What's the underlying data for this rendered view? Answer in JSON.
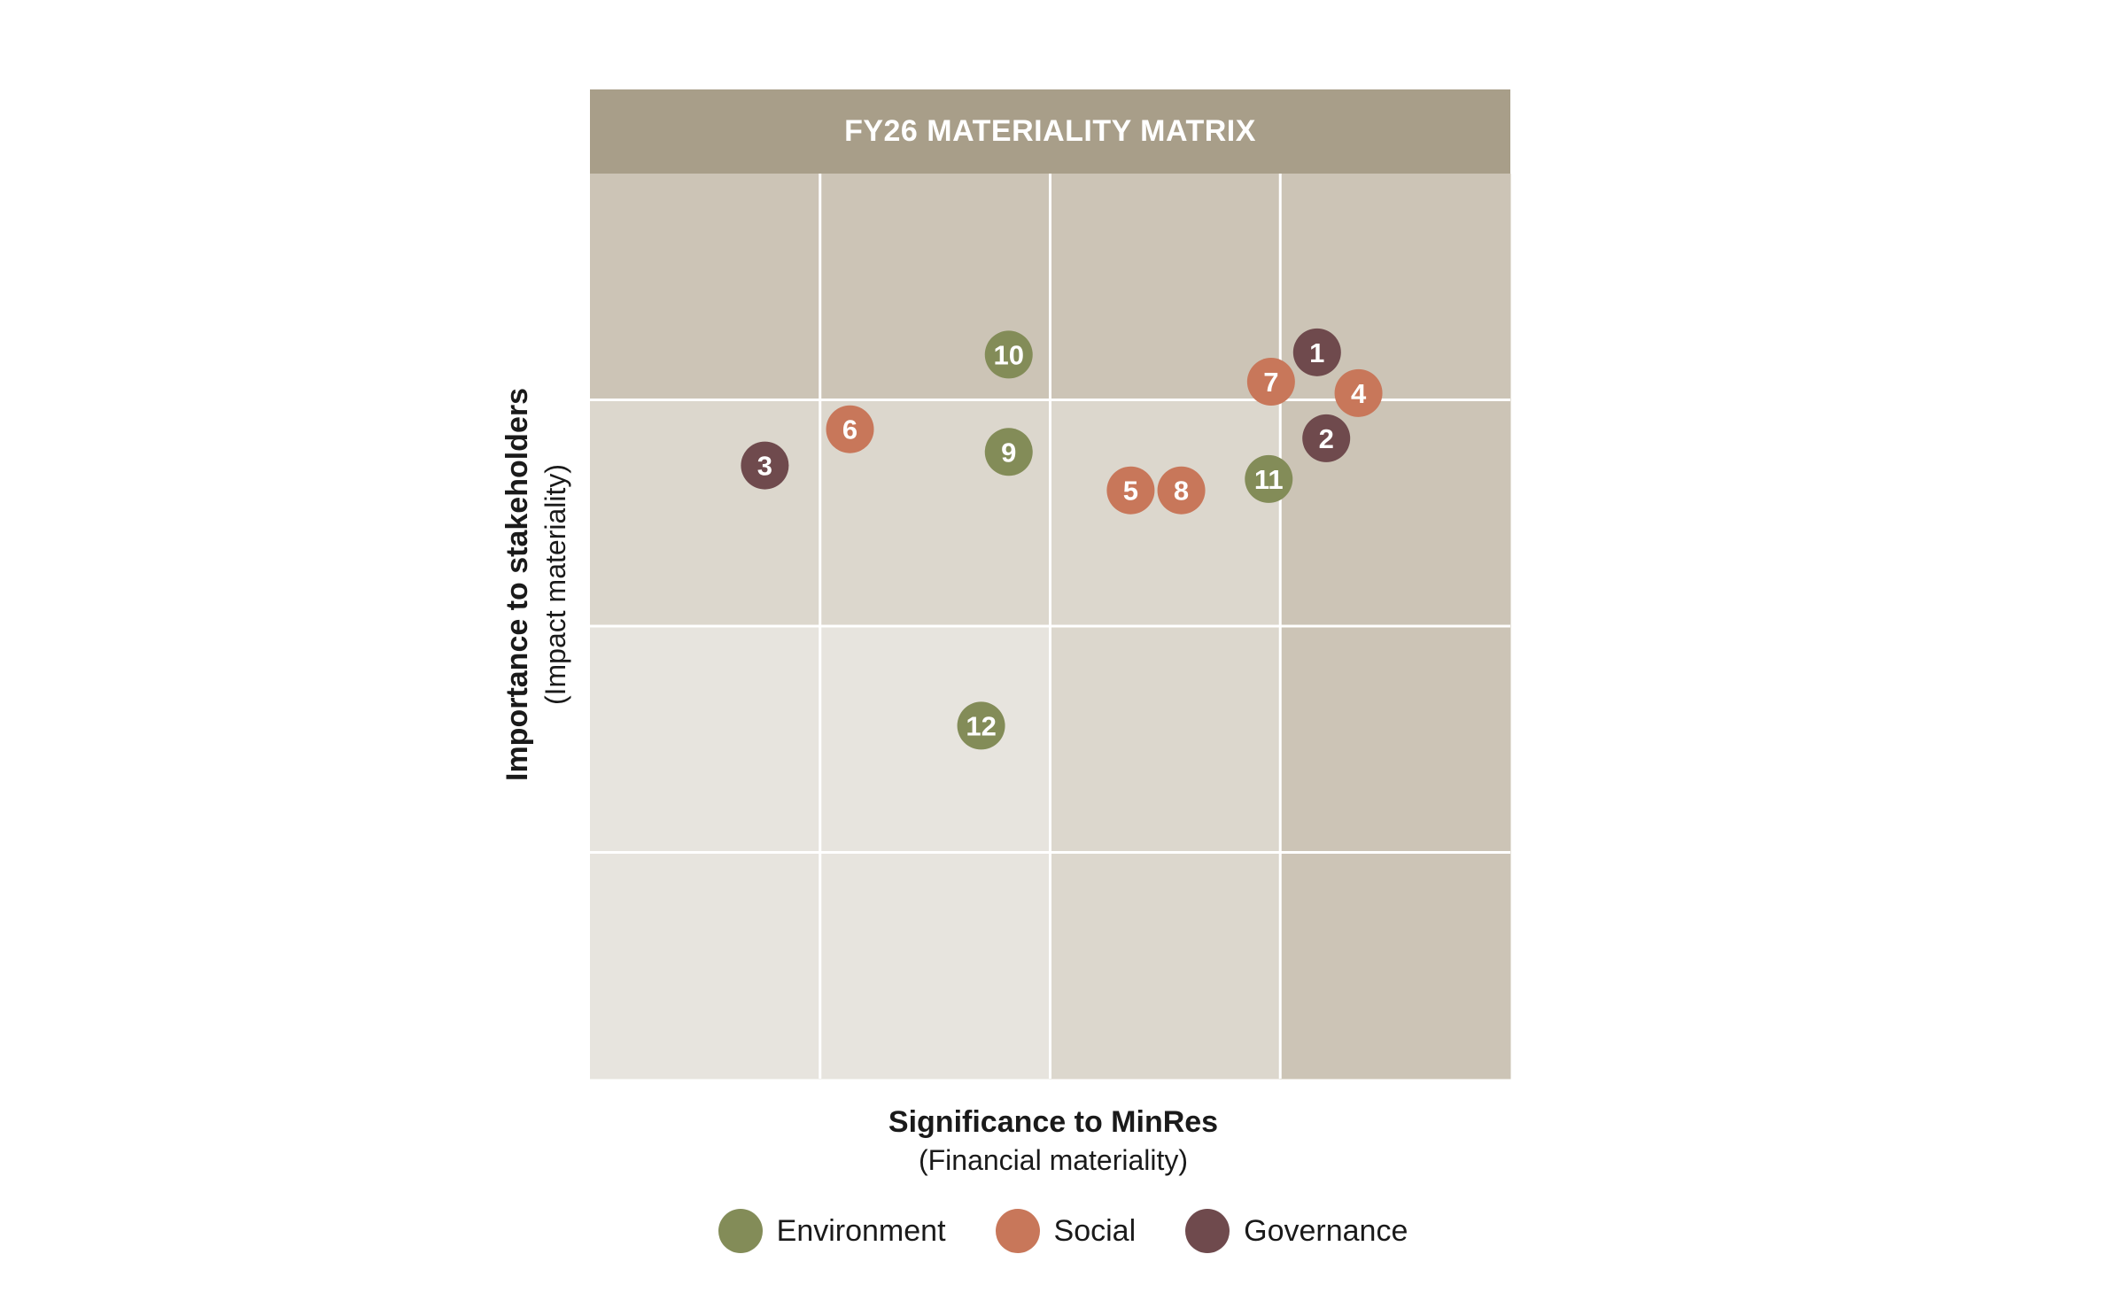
{
  "chart_data": {
    "type": "scatter",
    "title": "FY26 MATERIALITY MATRIX",
    "xlabel": "Significance to MinRes",
    "xlabel_sub": "(Financial materiality)",
    "ylabel": "Importance to stakeholders",
    "ylabel_sub": "(Impact materiality)",
    "xlim": [
      0,
      4
    ],
    "ylim": [
      0,
      4
    ],
    "grid": true,
    "cell_shades": [
      [
        "#ccc4b6",
        "#ccc4b6",
        "#ccc4b6",
        "#ccc4b6"
      ],
      [
        "#dcd7cd",
        "#dcd7cd",
        "#dcd7cd",
        "#ccc4b6"
      ],
      [
        "#e7e4de",
        "#e7e4de",
        "#dcd7cd",
        "#ccc4b6"
      ],
      [
        "#e7e4de",
        "#e7e4de",
        "#dcd7cd",
        "#ccc4b6"
      ]
    ],
    "categories": [
      {
        "key": "environment",
        "name": "Environment",
        "color": "#838c58"
      },
      {
        "key": "social",
        "name": "Social",
        "color": "#c8775a"
      },
      {
        "key": "governance",
        "name": "Governance",
        "color": "#6f4a4d"
      }
    ],
    "points": [
      {
        "label": "1",
        "category": "governance",
        "x": 3.16,
        "y": 3.21
      },
      {
        "label": "2",
        "category": "governance",
        "x": 3.2,
        "y": 2.83
      },
      {
        "label": "3",
        "category": "governance",
        "x": 0.76,
        "y": 2.71
      },
      {
        "label": "4",
        "category": "social",
        "x": 3.34,
        "y": 3.03
      },
      {
        "label": "5",
        "category": "social",
        "x": 2.35,
        "y": 2.6
      },
      {
        "label": "6",
        "category": "social",
        "x": 1.13,
        "y": 2.87
      },
      {
        "label": "7",
        "category": "social",
        "x": 2.96,
        "y": 3.08
      },
      {
        "label": "8",
        "category": "social",
        "x": 2.57,
        "y": 2.6
      },
      {
        "label": "9",
        "category": "environment",
        "x": 1.82,
        "y": 2.77
      },
      {
        "label": "10",
        "category": "environment",
        "x": 1.82,
        "y": 3.2
      },
      {
        "label": "11",
        "category": "environment",
        "x": 2.95,
        "y": 2.65
      },
      {
        "label": "12",
        "category": "environment",
        "x": 1.7,
        "y": 1.56
      }
    ]
  }
}
